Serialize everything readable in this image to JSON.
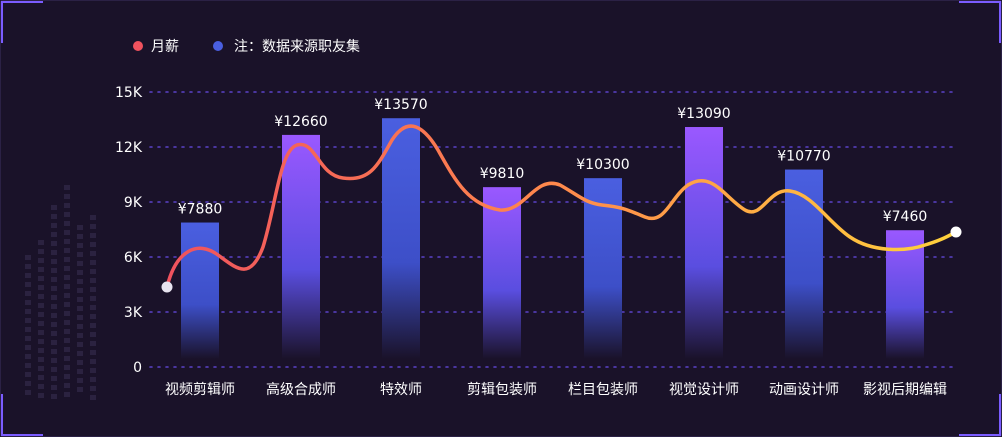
{
  "legend": {
    "line_label": "月薪",
    "line_color": "#f0525e",
    "note_label": "注：数据来源职友集",
    "note_color": "#4a5fe0"
  },
  "chart_data": {
    "type": "bar",
    "categories": [
      "视频剪辑师",
      "高级合成师",
      "特效师",
      "剪辑包装师",
      "栏目包装师",
      "视觉设计师",
      "动画设计师",
      "影视后期编辑"
    ],
    "series": [
      {
        "name": "月薪",
        "values": [
          7880,
          12660,
          13570,
          9810,
          10300,
          13090,
          10770,
          7460
        ]
      }
    ],
    "value_labels": [
      "¥7880",
      "¥12660",
      "¥13570",
      "¥9810",
      "¥10300",
      "¥13090",
      "¥10770",
      "¥7460"
    ],
    "y_ticks": [
      "0",
      "3K",
      "6K",
      "9K",
      "12K",
      "15K"
    ],
    "ylim": [
      0,
      15000
    ],
    "grid": true,
    "legend_position": "top-left",
    "colors": {
      "bar_top_purple": "#9a58ff",
      "bar_top_blue": "#4a5fe0",
      "bar_bottom": "#1a1229",
      "line_start": "#f0525e",
      "line_end": "#ffd23c",
      "grid": "#5b43c7"
    }
  }
}
